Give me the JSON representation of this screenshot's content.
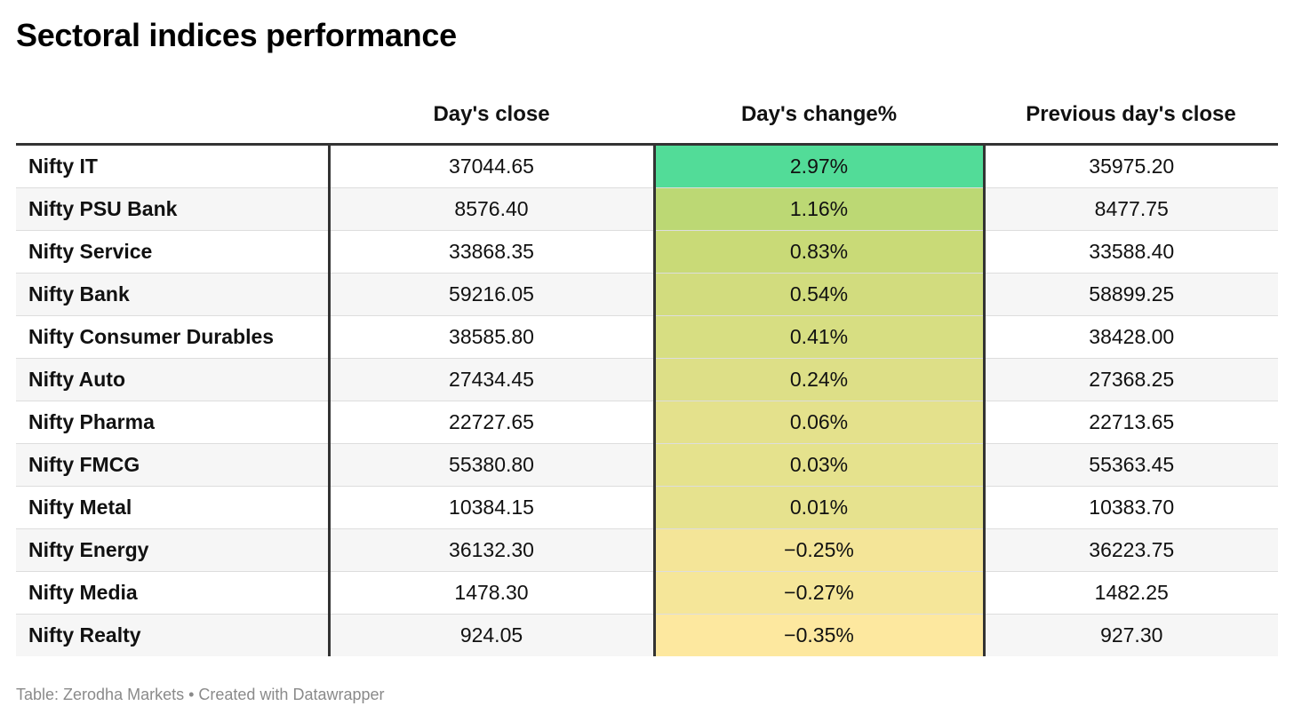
{
  "chart_data": {
    "type": "table",
    "title": "Sectoral indices performance",
    "columns": [
      "",
      "Day's close",
      "Day's change%",
      "Previous day's close"
    ],
    "rows": [
      {
        "name": "Nifty IT",
        "close": "37044.65",
        "change": "2.97%",
        "change_value": 2.97,
        "prev": "35975.20"
      },
      {
        "name": "Nifty PSU Bank",
        "close": "8576.40",
        "change": "1.16%",
        "change_value": 1.16,
        "prev": "8477.75"
      },
      {
        "name": "Nifty Service",
        "close": "33868.35",
        "change": "0.83%",
        "change_value": 0.83,
        "prev": "33588.40"
      },
      {
        "name": "Nifty Bank",
        "close": "59216.05",
        "change": "0.54%",
        "change_value": 0.54,
        "prev": "58899.25"
      },
      {
        "name": "Nifty Consumer Durables",
        "close": "38585.80",
        "change": "0.41%",
        "change_value": 0.41,
        "prev": "38428.00"
      },
      {
        "name": "Nifty Auto",
        "close": "27434.45",
        "change": "0.24%",
        "change_value": 0.24,
        "prev": "27368.25"
      },
      {
        "name": "Nifty Pharma",
        "close": "22727.65",
        "change": "0.06%",
        "change_value": 0.06,
        "prev": "22713.65"
      },
      {
        "name": "Nifty FMCG",
        "close": "55380.80",
        "change": "0.03%",
        "change_value": 0.03,
        "prev": "55363.45"
      },
      {
        "name": "Nifty Metal",
        "close": "10384.15",
        "change": "0.01%",
        "change_value": 0.01,
        "prev": "10383.70"
      },
      {
        "name": "Nifty Energy",
        "close": "36132.30",
        "change": "−0.25%",
        "change_value": -0.25,
        "prev": "36223.75"
      },
      {
        "name": "Nifty Media",
        "close": "1478.30",
        "change": "−0.27%",
        "change_value": -0.27,
        "prev": "1482.25"
      },
      {
        "name": "Nifty Realty",
        "close": "924.05",
        "change": "−0.35%",
        "change_value": -0.35,
        "prev": "927.30"
      }
    ],
    "heatmap": {
      "low_color": "#fde89f",
      "mid_color": "#c2d872",
      "high_color": "#52dc98"
    }
  },
  "footer": "Table: Zerodha Markets • Created with Datawrapper"
}
